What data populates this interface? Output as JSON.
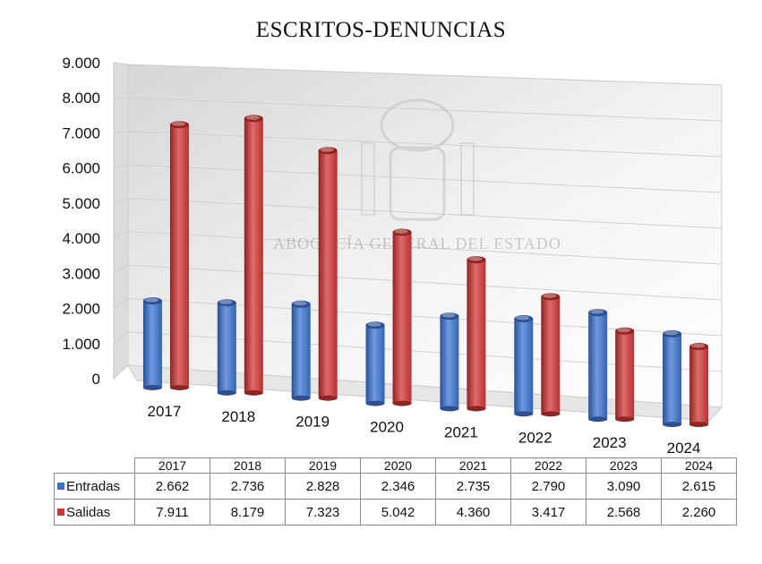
{
  "chart_data": {
    "type": "bar",
    "title": "ESCRITOS-DENUNCIAS",
    "categories": [
      "2017",
      "2018",
      "2019",
      "2020",
      "2021",
      "2022",
      "2023",
      "2024"
    ],
    "series": [
      {
        "name": "Entradas",
        "values": [
          2662,
          2736,
          2828,
          2346,
          2735,
          2790,
          3090,
          2615
        ],
        "color": "#3f6fc4"
      },
      {
        "name": "Salidas",
        "values": [
          7911,
          8179,
          7323,
          5042,
          4360,
          3417,
          2568,
          2260
        ],
        "color": "#c23b3b"
      }
    ],
    "y_ticks": [
      "0",
      "1.000",
      "2.000",
      "3.000",
      "4.000",
      "5.000",
      "6.000",
      "7.000",
      "8.000",
      "9.000"
    ],
    "ylim": [
      0,
      9000
    ],
    "table": {
      "rows": [
        {
          "label": "Entradas",
          "values": [
            "2.662",
            "2.736",
            "2.828",
            "2.346",
            "2.735",
            "2.790",
            "3.090",
            "2.615"
          ]
        },
        {
          "label": "Salidas",
          "values": [
            "7.911",
            "8.179",
            "7.323",
            "5.042",
            "4.360",
            "3.417",
            "2.568",
            "2.260"
          ]
        }
      ]
    },
    "watermark": "ABOGACÍA GENERAL DEL ESTADO",
    "grid": true,
    "legend": "data-table"
  }
}
